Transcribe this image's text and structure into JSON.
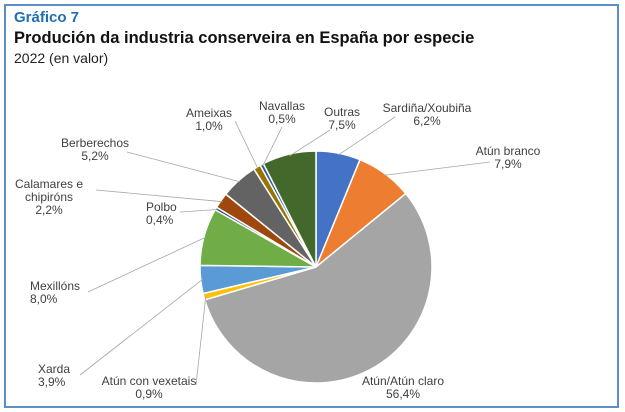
{
  "header": {
    "kicker": "Gráfico 7",
    "title": "Produción da industria conserveira en España por especie",
    "subtitle": "2022 (en valor)"
  },
  "chart_data": {
    "type": "pie",
    "title": "Produción da industria conserveira en España por especie",
    "subtitle": "2022 (en valor)",
    "unit": "%",
    "slices": [
      {
        "label": [
          "Sardiña/Xoubiña"
        ],
        "value": "6,2%",
        "v": 6.2,
        "color": "#4472c4"
      },
      {
        "label": [
          "Atún branco"
        ],
        "value": "7,9%",
        "v": 7.9,
        "color": "#ed7d31"
      },
      {
        "label": [
          "Atún/Atún claro"
        ],
        "value": "56,4%",
        "v": 56.4,
        "color": "#a5a5a5"
      },
      {
        "label": [
          "Atún con vexetais"
        ],
        "value": "0,9%",
        "v": 0.9,
        "color": "#ffc000"
      },
      {
        "label": [
          "Xarda"
        ],
        "value": "3,9%",
        "v": 3.9,
        "color": "#5b9bd5"
      },
      {
        "label": [
          "Mexillóns"
        ],
        "value": "8,0%",
        "v": 8.0,
        "color": "#70ad47"
      },
      {
        "label": [
          "Polbo"
        ],
        "value": "0,4%",
        "v": 0.4,
        "color": "#264478"
      },
      {
        "label": [
          "Calamares e",
          "chipiróns"
        ],
        "value": "2,2%",
        "v": 2.2,
        "color": "#9e480e"
      },
      {
        "label": [
          "Berberechos"
        ],
        "value": "5,2%",
        "v": 5.2,
        "color": "#636363"
      },
      {
        "label": [
          "Ameixas"
        ],
        "value": "1,0%",
        "v": 1.0,
        "color": "#997300"
      },
      {
        "label": [
          "Navallas"
        ],
        "value": "0,5%",
        "v": 0.5,
        "color": "#2e5f9a"
      },
      {
        "label": [
          "Outras"
        ],
        "value": "7,5%",
        "v": 7.5,
        "color": "#43682b"
      }
    ]
  }
}
